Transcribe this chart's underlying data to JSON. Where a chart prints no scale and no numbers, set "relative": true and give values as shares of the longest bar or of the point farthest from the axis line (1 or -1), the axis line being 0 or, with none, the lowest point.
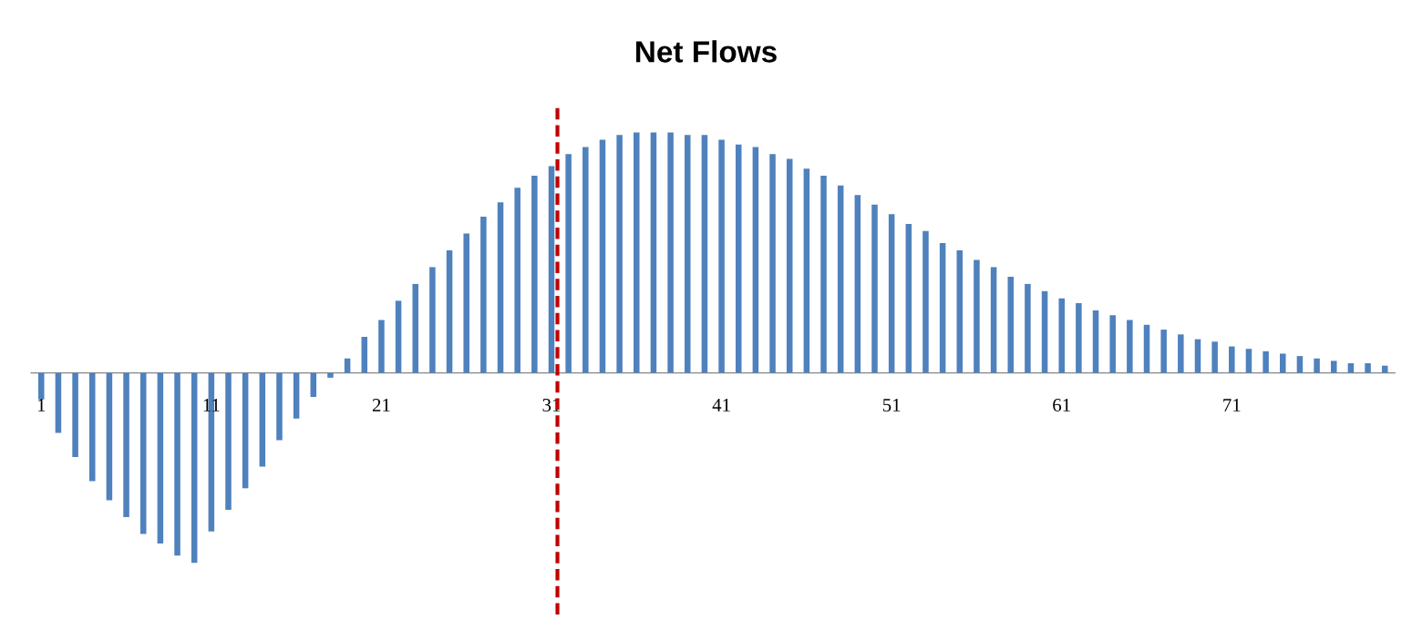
{
  "chart_data": {
    "type": "bar",
    "title": "Net Flows",
    "relative": true,
    "categories": [
      "1",
      null,
      null,
      null,
      null,
      null,
      null,
      null,
      null,
      null,
      "11",
      null,
      null,
      null,
      null,
      null,
      null,
      null,
      null,
      null,
      "21",
      null,
      null,
      null,
      null,
      null,
      null,
      null,
      null,
      null,
      "31",
      null,
      null,
      null,
      null,
      null,
      null,
      null,
      null,
      null,
      "41",
      null,
      null,
      null,
      null,
      null,
      null,
      null,
      null,
      null,
      "51",
      null,
      null,
      null,
      null,
      null,
      null,
      null,
      null,
      null,
      "61",
      null,
      null,
      null,
      null,
      null,
      null,
      null,
      null,
      null,
      "71",
      null,
      null,
      null,
      null,
      null,
      null,
      null,
      null,
      null
    ],
    "series": [
      {
        "color": "#4f81bd",
        "values": [
          -0.11,
          -0.25,
          -0.35,
          -0.45,
          -0.53,
          -0.6,
          -0.67,
          -0.71,
          -0.76,
          -0.79,
          -0.66,
          -0.57,
          -0.48,
          -0.39,
          -0.28,
          -0.19,
          -0.1,
          -0.02,
          0.06,
          0.15,
          0.22,
          0.3,
          0.37,
          0.44,
          0.51,
          0.58,
          0.65,
          0.71,
          0.77,
          0.82,
          0.86,
          0.91,
          0.94,
          0.97,
          0.99,
          1.0,
          1.0,
          1.0,
          0.99,
          0.99,
          0.97,
          0.95,
          0.94,
          0.91,
          0.89,
          0.85,
          0.82,
          0.78,
          0.74,
          0.7,
          0.66,
          0.62,
          0.59,
          0.54,
          0.51,
          0.47,
          0.44,
          0.4,
          0.37,
          0.34,
          0.31,
          0.29,
          0.26,
          0.24,
          0.22,
          0.2,
          0.18,
          0.16,
          0.14,
          0.13,
          0.11,
          0.1,
          0.09,
          0.08,
          0.07,
          0.06,
          0.05,
          0.04,
          0.04,
          0.03
        ]
      }
    ],
    "ref_lines": [
      {
        "axis": "x",
        "value": "31",
        "color": "#c00000",
        "line_style": "dashed"
      }
    ],
    "grid": false,
    "legend": false
  }
}
